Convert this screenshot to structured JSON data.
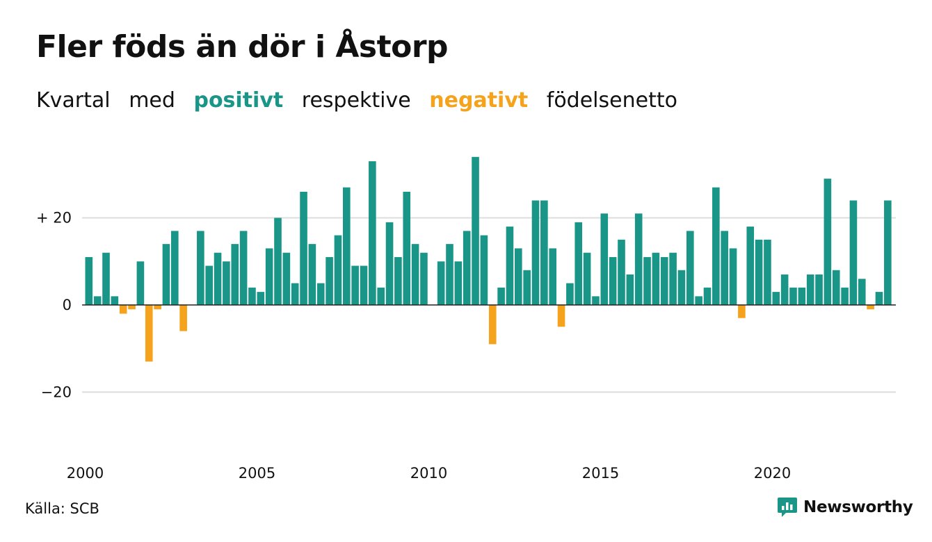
{
  "title": "Fler föds än dör i Åstorp",
  "subtitle": {
    "w1": "Kvartal",
    "w2": "med",
    "positive": "positivt",
    "w3": "respektive",
    "negative": "negativt",
    "w4": "födelsenetto"
  },
  "colors": {
    "positive": "#1a9688",
    "negative": "#f5a21c",
    "grid": "#dddddd",
    "zero": "#222222"
  },
  "chart_data": {
    "type": "bar",
    "start": "2000 Q1",
    "interval": "quarter",
    "values": [
      11,
      2,
      12,
      2,
      -2,
      -1,
      10,
      -13,
      -1,
      14,
      17,
      -6,
      null,
      17,
      9,
      12,
      10,
      14,
      17,
      4,
      3,
      13,
      20,
      12,
      5,
      26,
      14,
      5,
      11,
      16,
      27,
      9,
      9,
      33,
      4,
      19,
      11,
      26,
      14,
      12,
      null,
      10,
      14,
      10,
      17,
      34,
      16,
      -9,
      4,
      18,
      13,
      8,
      24,
      24,
      13,
      -5,
      5,
      19,
      12,
      2,
      21,
      11,
      15,
      7,
      21,
      11,
      12,
      11,
      12,
      8,
      17,
      2,
      4,
      27,
      17,
      13,
      -3,
      18,
      15,
      15,
      3,
      7,
      4,
      4,
      7,
      7,
      29,
      8,
      4,
      24,
      6,
      -1,
      3,
      24
    ],
    "yticks": [
      20,
      0,
      -20
    ],
    "ytick_labels": [
      "+ 20",
      "0",
      "−20"
    ],
    "ylim": [
      -34,
      37
    ],
    "xticks": [
      {
        "label": "2000",
        "index": 0
      },
      {
        "label": "2005",
        "index": 20
      },
      {
        "label": "2010",
        "index": 40
      },
      {
        "label": "2015",
        "index": 60
      },
      {
        "label": "2020",
        "index": 80
      }
    ],
    "grid": true
  },
  "footer": {
    "source": "Källa: SCB",
    "brand": "Newsworthy"
  }
}
